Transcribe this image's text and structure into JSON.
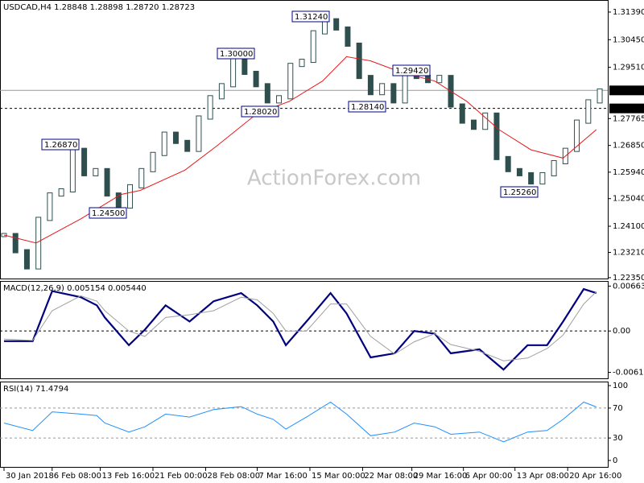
{
  "chart_data": [
    {
      "type": "candlestick",
      "title": "USDCAD,H4 1.28848 1.28898 1.28720 1.28723",
      "watermark": "ActionForex.com",
      "close": [
        1.238,
        1.2325,
        1.227,
        1.2435,
        1.2518,
        1.2532,
        1.267,
        1.2587,
        1.2601,
        1.2518,
        1.2477,
        1.2546,
        1.2601,
        1.2656,
        1.2725,
        1.2697,
        1.267,
        1.278,
        1.2849,
        1.289,
        1.2987,
        1.2932,
        1.289,
        1.2835,
        1.2849,
        1.2959,
        1.2973,
        1.307,
        1.3111,
        1.3083,
        1.3028,
        1.2918,
        1.2863,
        1.289,
        1.2835,
        1.2932,
        1.2918,
        1.2904,
        1.2918,
        1.2821,
        1.2766,
        1.2745,
        1.279,
        1.2642,
        1.2601,
        1.2587,
        1.2559,
        1.2587,
        1.2628,
        1.267,
        1.2766,
        1.2835,
        1.2872
      ],
      "color": "#2f4f4f",
      "ma": {
        "x": [
          0,
          2.8,
          6.7,
          10.2,
          11.9,
          15.8,
          18.6,
          22.1,
          24.9,
          27.8,
          29.9,
          32.0,
          34.8,
          37.6,
          40.4,
          43.2,
          46.0,
          48.8,
          51.7
        ],
        "values": [
          1.238,
          1.2353,
          1.2435,
          1.2518,
          1.2532,
          1.2601,
          1.2684,
          1.2794,
          1.2835,
          1.2904,
          1.2987,
          1.2973,
          1.2932,
          1.2904,
          1.2835,
          1.2739,
          1.267,
          1.2642,
          1.2739
        ],
        "color": "#e41a1c"
      },
      "xlim": [
        -0.35,
        52.7
      ],
      "ylim": [
        1.2232,
        1.318
      ],
      "yticks": [
        {
          "value": 1.3139,
          "label": "1.31390"
        },
        {
          "value": 1.3045,
          "label": "1.30450"
        },
        {
          "value": 1.2951,
          "label": "1.29510"
        },
        {
          "value": 1.27765,
          "label": "1.27765"
        },
        {
          "value": 1.2685,
          "label": "1.26850"
        },
        {
          "value": 1.2594,
          "label": "1.25940"
        },
        {
          "value": 1.2504,
          "label": "1.25040"
        },
        {
          "value": 1.241,
          "label": "1.24100"
        },
        {
          "value": 1.2321,
          "label": "1.23210"
        },
        {
          "value": 1.2235,
          "label": "1.22350"
        }
      ],
      "hlines": [
        {
          "value": 1.28723,
          "label": "1.28723",
          "style": "solid"
        },
        {
          "value": 1.2811,
          "label": "1.28110",
          "style": "dashed"
        }
      ],
      "annotations": [
        "1.31240",
        "1.30000",
        "1.29420",
        "1.28020",
        "1.28140",
        "1.26870",
        "1.24500",
        "1.25260"
      ]
    },
    {
      "type": "macd",
      "title": "MACD(12,26,9) 0.005154 0.005440",
      "x": [
        0,
        2.5,
        4.2,
        6.7,
        8.1,
        8.8,
        10.9,
        12.3,
        14.1,
        16.2,
        18.3,
        20.7,
        22.1,
        23.5,
        24.6,
        26.4,
        28.5,
        29.9,
        32.0,
        34.1,
        35.8,
        37.6,
        39.0,
        41.5,
        43.6,
        45.7,
        47.4,
        48.8,
        50.6,
        51.7
      ],
      "series": [
        {
          "color": "#000080",
          "values": [
            -0.0015,
            -0.0015,
            0.0059,
            0.005,
            0.0038,
            0.002,
            -0.0021,
            0.0002,
            0.0038,
            0.0014,
            0.0044,
            0.0056,
            0.0038,
            0.0014,
            -0.0021,
            0.0014,
            0.0056,
            0.0026,
            -0.0039,
            -0.0033,
            0,
            -0.0004,
            -0.0033,
            -0.0027,
            -0.0057,
            -0.0021,
            -0.0021,
            0.0014,
            0.0062,
            0.0056
          ]
        },
        {
          "color": "#a0a0a0",
          "values": [
            -0.0012,
            -0.0014,
            0.003,
            0.0052,
            0.0044,
            0.003,
            0.0,
            -0.0008,
            0.002,
            0.0024,
            0.003,
            0.005,
            0.0046,
            0.0026,
            0.0,
            0.0,
            0.004,
            0.004,
            -0.0008,
            -0.0034,
            -0.0016,
            -0.0004,
            -0.002,
            -0.003,
            -0.0044,
            -0.004,
            -0.0026,
            -0.0006,
            0.004,
            0.0058
          ]
        }
      ],
      "xlim": [
        -0.35,
        52.7
      ],
      "ylim": [
        -0.007,
        0.0074
      ],
      "yticks": [
        0.006639,
        {
          "value": 0,
          "label": "0.00"
        },
        -0.006114
      ]
    },
    {
      "type": "rsi",
      "title": "RSI(14) 71.4794",
      "x": [
        0,
        2.5,
        4.2,
        6.7,
        8.1,
        8.8,
        10.9,
        12.3,
        14.1,
        16.2,
        18.3,
        20.7,
        22.1,
        23.5,
        24.6,
        26.4,
        28.5,
        29.9,
        32.0,
        34.1,
        35.8,
        37.6,
        39.0,
        41.5,
        43.6,
        45.7,
        47.4,
        48.8,
        50.6,
        51.7
      ],
      "values": [
        50,
        40,
        65,
        62,
        60,
        50,
        38,
        45,
        62,
        58,
        68,
        72,
        62,
        55,
        42,
        58,
        78,
        62,
        33,
        38,
        50,
        45,
        35,
        38,
        25,
        38,
        40,
        55,
        78,
        71.5
      ],
      "color": "#1e90ff",
      "levels": [
        70,
        30
      ],
      "xlim": [
        -0.35,
        52.7
      ],
      "ylim": [
        -8.6,
        105.4
      ],
      "yticks": [
        100,
        70,
        30,
        0
      ],
      "xticks": [
        {
          "value": 0,
          "label": "30 Jan 2018"
        },
        {
          "value": 4.2,
          "label": "6 Feb 08:00"
        },
        {
          "value": 8.4,
          "label": "13 Feb 16:00"
        },
        {
          "value": 13.0,
          "label": "21 Feb 00:00"
        },
        {
          "value": 17.6,
          "label": "28 Feb 08:00"
        },
        {
          "value": 22.1,
          "label": "7 Mar 16:00"
        },
        {
          "value": 26.7,
          "label": "15 Mar 00:00"
        },
        {
          "value": 31.3,
          "label": "22 Mar 08:00"
        },
        {
          "value": 35.6,
          "label": "29 Mar 16:00"
        },
        {
          "value": 40.1,
          "label": "6 Apr 00:00"
        },
        {
          "value": 44.6,
          "label": "13 Apr 08:00"
        },
        {
          "value": 49.2,
          "label": "20 Apr 16:00"
        }
      ]
    }
  ]
}
